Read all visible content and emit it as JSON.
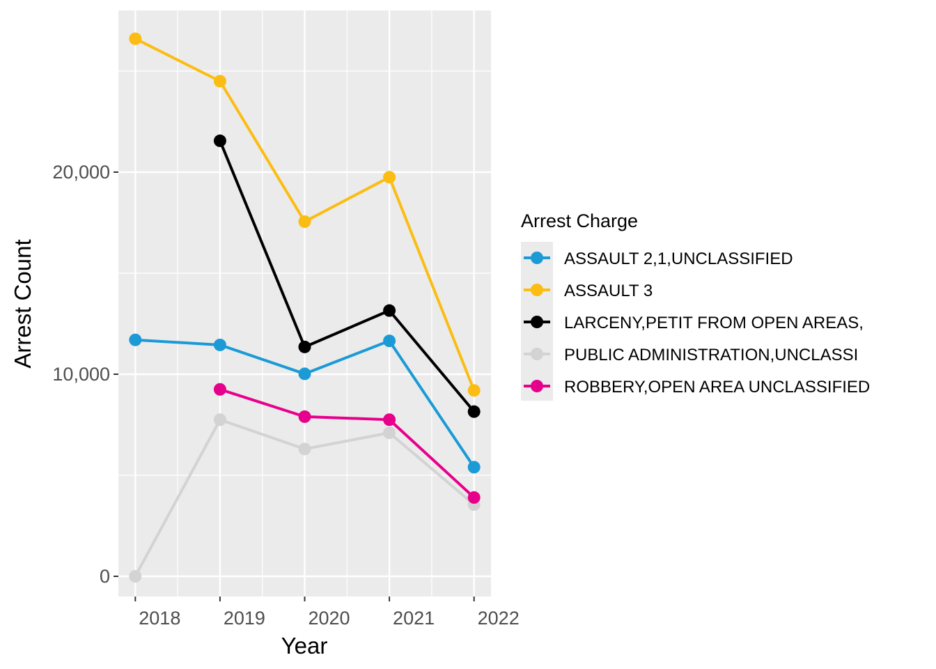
{
  "chart_data": {
    "type": "line",
    "title": "",
    "xlabel": "Year",
    "ylabel": "Arrest Count",
    "x": [
      2018,
      2019,
      2020,
      2021,
      2022
    ],
    "x_tick_labels": [
      "2018",
      "2019",
      "2020",
      "2021",
      "2022"
    ],
    "y_ticks": [
      0,
      10000,
      20000
    ],
    "y_tick_labels": [
      "0",
      "10,000",
      "20,000"
    ],
    "xlim": [
      2017.8,
      2022.2
    ],
    "ylim": [
      -1000,
      28000
    ],
    "grid": true,
    "legend": {
      "title": "Arrest Charge",
      "position": "right"
    },
    "series": [
      {
        "name": "ASSAULT 2,1,UNCLASSIFIED",
        "color": "#1b9ad6",
        "values": [
          11700,
          11450,
          10020,
          11650,
          5400
        ]
      },
      {
        "name": "ASSAULT 3",
        "color": "#fbbd13",
        "values": [
          26600,
          24500,
          17550,
          19750,
          9200
        ]
      },
      {
        "name": "LARCENY,PETIT FROM OPEN AREAS,",
        "color": "#000000",
        "values": [
          null,
          21550,
          11350,
          13150,
          8150
        ]
      },
      {
        "name": "PUBLIC ADMINISTRATION,UNCLASSI",
        "color": "#d3d3d3",
        "values": [
          0,
          7750,
          6300,
          7100,
          3550
        ]
      },
      {
        "name": "ROBBERY,OPEN AREA UNCLASSIFIED",
        "color": "#e7008c",
        "values": [
          null,
          9250,
          7900,
          7750,
          3900
        ]
      }
    ]
  }
}
